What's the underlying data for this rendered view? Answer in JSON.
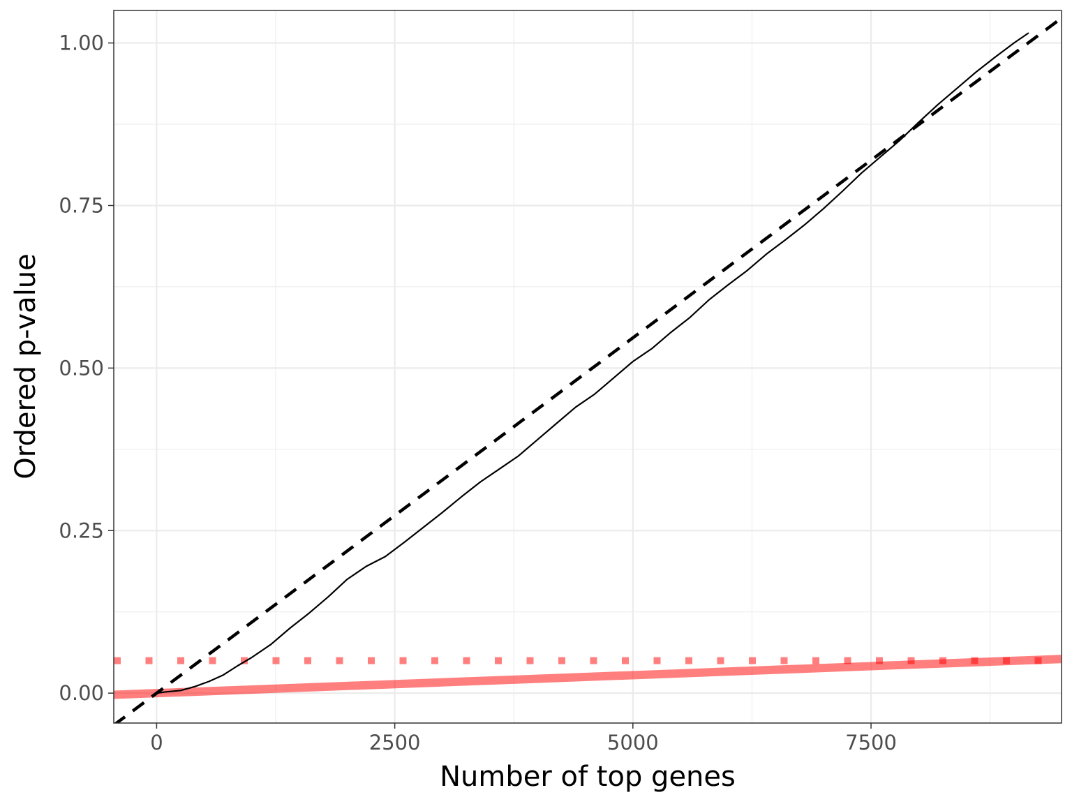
{
  "chart_data": {
    "type": "line",
    "title": "",
    "xlabel": "Number of top genes",
    "ylabel": "Ordered p-value",
    "xlim": [
      -450,
      9500
    ],
    "ylim": [
      -0.046,
      1.05
    ],
    "x_ticks": [
      {
        "value": 0,
        "label": "0"
      },
      {
        "value": 2500,
        "label": "2500"
      },
      {
        "value": 5000,
        "label": "5000"
      },
      {
        "value": 7500,
        "label": "7500"
      }
    ],
    "y_ticks": [
      {
        "value": 0.0,
        "label": "0.00"
      },
      {
        "value": 0.25,
        "label": "0.25"
      },
      {
        "value": 0.5,
        "label": "0.50"
      },
      {
        "value": 0.75,
        "label": "0.75"
      },
      {
        "value": 1.0,
        "label": "1.00"
      }
    ],
    "grid": true,
    "series": [
      {
        "style": "solid-thin",
        "color": "#000000",
        "x": [
          0,
          100,
          250,
          400,
          550,
          700,
          850,
          1000,
          1200,
          1400,
          1600,
          1800,
          2000,
          2200,
          2400,
          2600,
          2800,
          3000,
          3200,
          3400,
          3600,
          3800,
          4000,
          4200,
          4400,
          4600,
          4800,
          5000,
          5200,
          5400,
          5600,
          5800,
          6000,
          6200,
          6400,
          6600,
          6800,
          7000,
          7200,
          7400,
          7600,
          7800,
          8000,
          8200,
          8400,
          8600,
          8800,
          9000,
          9150
        ],
        "y": [
          0.0,
          0.002,
          0.004,
          0.01,
          0.018,
          0.028,
          0.042,
          0.055,
          0.075,
          0.1,
          0.123,
          0.148,
          0.175,
          0.195,
          0.21,
          0.232,
          0.255,
          0.278,
          0.302,
          0.325,
          0.345,
          0.365,
          0.39,
          0.415,
          0.44,
          0.46,
          0.485,
          0.51,
          0.53,
          0.555,
          0.578,
          0.605,
          0.628,
          0.65,
          0.675,
          0.697,
          0.72,
          0.745,
          0.772,
          0.8,
          0.825,
          0.85,
          0.878,
          0.905,
          0.93,
          0.955,
          0.978,
          1.0,
          1.015
        ]
      },
      {
        "style": "dashed",
        "color": "#000000",
        "x": [
          -450,
          9500
        ],
        "y": [
          -0.0492,
          1.0383
        ]
      },
      {
        "style": "thick",
        "color": "#ff0000",
        "opacity": 0.5,
        "x": [
          -450,
          9500
        ],
        "y": [
          -0.0025,
          0.0525
        ]
      },
      {
        "style": "dotted-thick",
        "color": "#ff0000",
        "opacity": 0.5,
        "x": [
          -450,
          9500
        ],
        "y": [
          0.05,
          0.05
        ]
      }
    ]
  }
}
